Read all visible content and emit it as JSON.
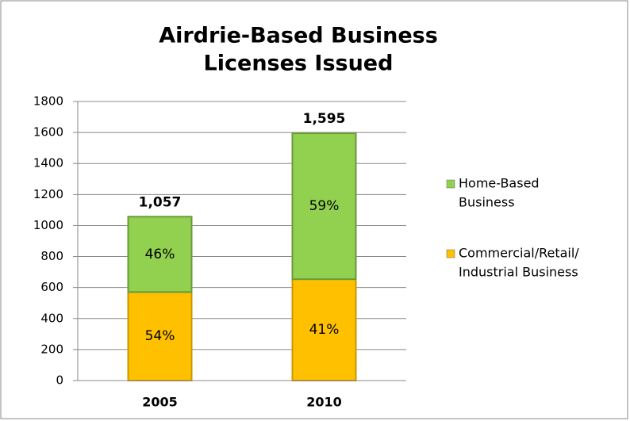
{
  "chart_data": {
    "type": "stacked_bar",
    "title": [
      "Airdrie-Based Business",
      "Licenses Issued"
    ],
    "categories": [
      "2005",
      "2010"
    ],
    "series": [
      {
        "name": [
          "Commercial/Retail/",
          "Industrial Business"
        ],
        "color": "#ffc000",
        "values": [
          571,
          654
        ],
        "percent_labels": [
          "54%",
          "41%"
        ]
      },
      {
        "name": [
          "Home-Based",
          "Business"
        ],
        "color": "#92d050",
        "values": [
          486,
          941
        ],
        "percent_labels": [
          "46%",
          "59%"
        ]
      }
    ],
    "totals": [
      1057,
      1595
    ],
    "total_labels": [
      "1,057",
      "1,595"
    ],
    "ylim": [
      0,
      1800
    ],
    "yticks": [
      0,
      200,
      400,
      600,
      800,
      1000,
      1200,
      1400,
      1600,
      1800
    ],
    "grid": true,
    "legend": "right"
  }
}
